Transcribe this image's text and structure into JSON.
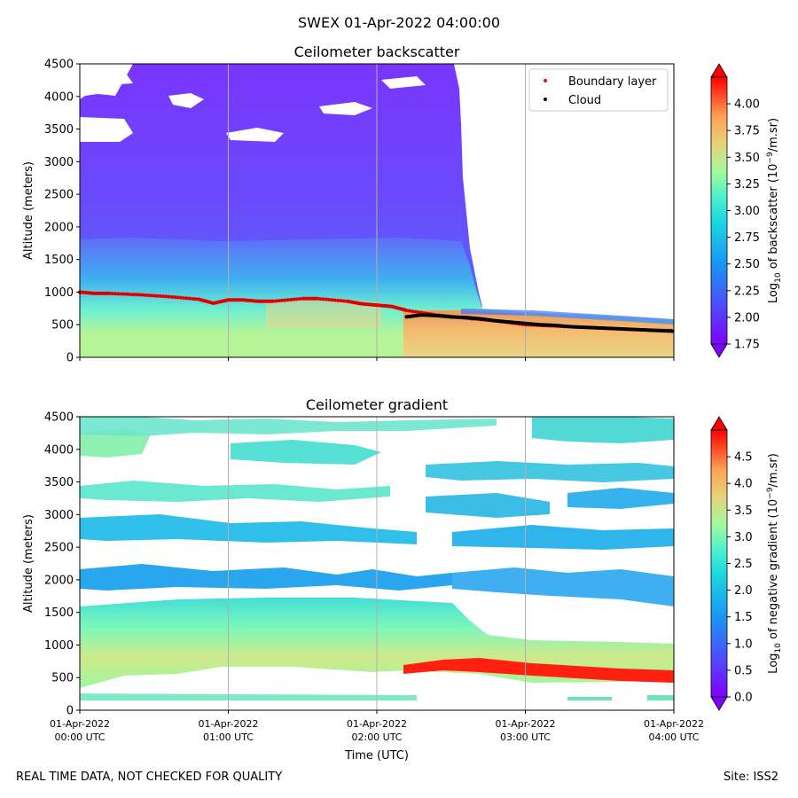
{
  "title": "SWEX 01-Apr-2022 04:00:00",
  "footer": {
    "disclaimer": "REAL TIME DATA, NOT CHECKED FOR QUALITY",
    "site": "Site: ISS2"
  },
  "chart_data": [
    {
      "type": "heatmap",
      "title": "Ceilometer backscatter",
      "ylabel": "Altitude (meters)",
      "xlabel": "",
      "ylim": [
        0,
        4500
      ],
      "yticks": [
        0,
        500,
        1000,
        1500,
        2000,
        2500,
        3000,
        3500,
        4000,
        4500
      ],
      "xlim_hours": [
        0,
        4
      ],
      "xticks_hours": [
        0,
        1,
        2,
        3,
        4
      ],
      "xtick_labels": [],
      "grid": "vertical",
      "colormap": "rainbow",
      "colorbar": {
        "label_prefix": "Log",
        "label_sub": "10",
        "label_mid": " of backscatter (10",
        "label_sup": "−9",
        "label_suffix": "/m.sr)",
        "range": [
          1.75,
          4.25
        ],
        "ticks": [
          "1.75",
          "2.00",
          "2.25",
          "2.50",
          "2.75",
          "3.00",
          "3.25",
          "3.50",
          "3.75",
          "4.00"
        ],
        "extend": "both"
      },
      "legend": {
        "location": "top-right",
        "entries": [
          {
            "label": "Boundary layer",
            "color": "#ff0000"
          },
          {
            "label": "Cloud",
            "color": "#000000"
          }
        ]
      },
      "series": [
        {
          "name": "Boundary layer",
          "t": [
            0.0,
            0.1,
            0.2,
            0.4,
            0.6,
            0.8,
            0.9,
            1.0,
            1.1,
            1.2,
            1.3,
            1.5,
            1.6,
            1.8,
            1.9,
            2.0,
            2.1,
            2.2,
            2.4,
            2.6,
            2.8,
            3.0,
            3.2,
            3.4,
            3.6,
            3.8,
            4.0
          ],
          "alt": [
            1000,
            980,
            980,
            960,
            930,
            890,
            830,
            880,
            880,
            860,
            860,
            900,
            900,
            860,
            820,
            800,
            780,
            720,
            650,
            600,
            560,
            500,
            480,
            460,
            440,
            420,
            410
          ]
        },
        {
          "name": "Cloud",
          "t": [
            2.2,
            2.3,
            2.4,
            2.5,
            2.6,
            2.7,
            2.8,
            2.9,
            3.0,
            3.1,
            3.2,
            3.3,
            3.4,
            3.5,
            3.6,
            3.7,
            3.8,
            3.9,
            4.0
          ],
          "alt": [
            620,
            650,
            640,
            620,
            610,
            590,
            560,
            540,
            520,
            500,
            490,
            470,
            460,
            450,
            440,
            430,
            420,
            410,
            400
          ]
        }
      ]
    },
    {
      "type": "heatmap",
      "title": "Ceilometer gradient",
      "ylabel": "Altitude (meters)",
      "xlabel": "Time (UTC)",
      "ylim": [
        0,
        4500
      ],
      "yticks": [
        0,
        500,
        1000,
        1500,
        2000,
        2500,
        3000,
        3500,
        4000,
        4500
      ],
      "xlim_hours": [
        0,
        4
      ],
      "xticks_hours": [
        0,
        1,
        2,
        3,
        4
      ],
      "xtick_labels": [
        [
          "01-Apr-2022",
          "00:00 UTC"
        ],
        [
          "01-Apr-2022",
          "01:00 UTC"
        ],
        [
          "01-Apr-2022",
          "02:00 UTC"
        ],
        [
          "01-Apr-2022",
          "03:00 UTC"
        ],
        [
          "01-Apr-2022",
          "04:00 UTC"
        ]
      ],
      "grid": "vertical",
      "colormap": "rainbow",
      "colorbar": {
        "label_prefix": "Log",
        "label_sub": "10",
        "label_mid": " of negative gradient (10",
        "label_sup": "−9",
        "label_suffix": "/m.sr)",
        "range": [
          0,
          5
        ],
        "ticks": [
          "0.0",
          "0.5",
          "1.0",
          "1.5",
          "2.0",
          "2.5",
          "3.0",
          "3.5",
          "4.0",
          "4.5"
        ],
        "extend": "both"
      }
    }
  ]
}
